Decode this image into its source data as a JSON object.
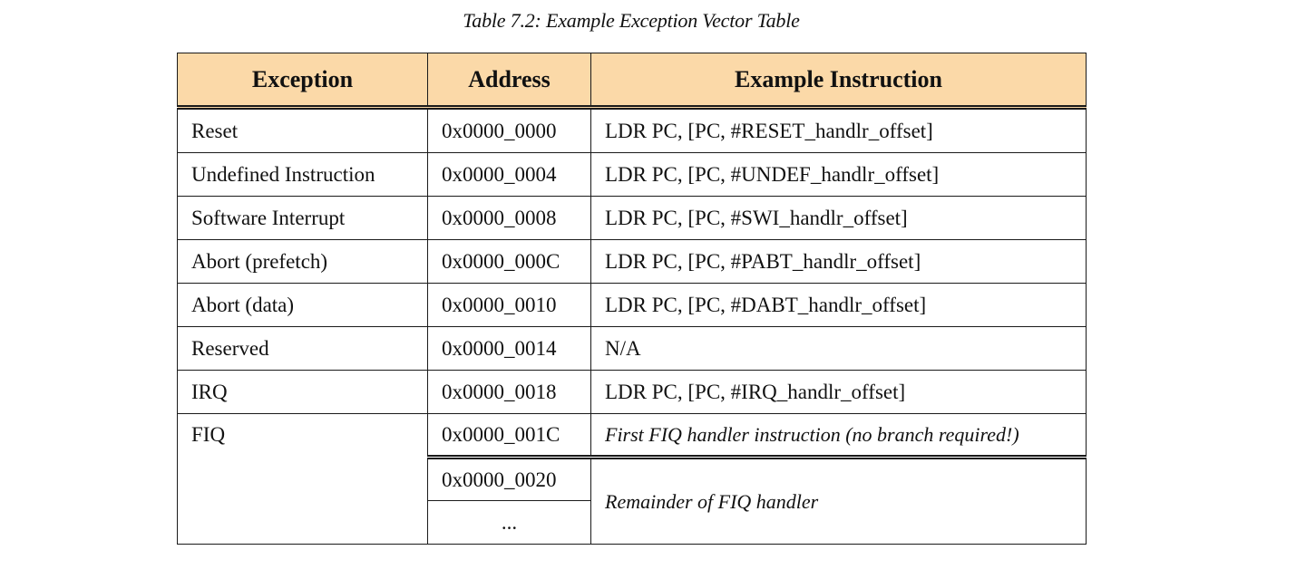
{
  "caption": "Table 7.2: Example Exception Vector Table",
  "headers": [
    "Exception",
    "Address",
    "Example Instruction"
  ],
  "rows": [
    {
      "exception": "Reset",
      "address": "0x0000_0000",
      "instruction": "LDR PC, [PC, #RESET_handlr_offset]"
    },
    {
      "exception": "Undefined Instruction",
      "address": "0x0000_0004",
      "instruction": "LDR PC, [PC, #UNDEF_handlr_offset]"
    },
    {
      "exception": "Software Interrupt",
      "address": "0x0000_0008",
      "instruction": "LDR PC, [PC, #SWI_handlr_offset]"
    },
    {
      "exception": "Abort (prefetch)",
      "address": "0x0000_000C",
      "instruction": "LDR PC, [PC, #PABT_handlr_offset]"
    },
    {
      "exception": "Abort (data)",
      "address": "0x0000_0010",
      "instruction": "LDR PC, [PC, #DABT_handlr_offset]"
    },
    {
      "exception": "Reserved",
      "address": "0x0000_0014",
      "instruction": "N/A"
    },
    {
      "exception": "IRQ",
      "address": "0x0000_0018",
      "instruction": "LDR PC, [PC, #IRQ_handlr_offset]"
    }
  ],
  "fiq": {
    "exception": "FIQ",
    "first_address": "0x0000_001C",
    "first_instruction": "First FIQ handler instruction (no branch required!)",
    "second_address": "0x0000_0020",
    "ellipsis": "...",
    "remainder_instruction": "Remainder of FIQ handler"
  }
}
